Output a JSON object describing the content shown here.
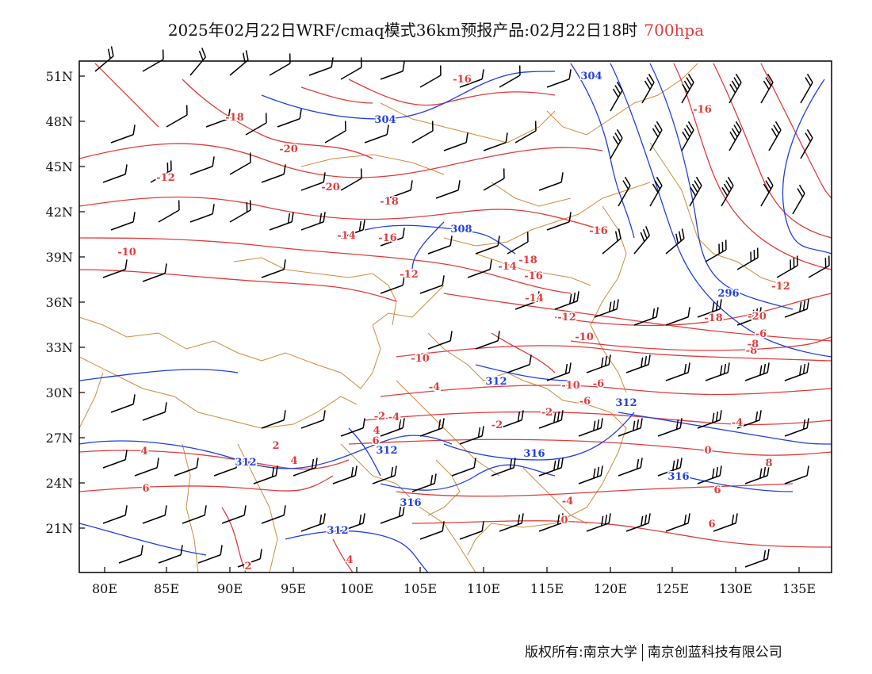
{
  "title": {
    "text": "2025年02月22日WRF/cmaq模式36km预报产品:02月22日18时",
    "level": "700hpa"
  },
  "axes": {
    "lat_labels": [
      "51N",
      "48N",
      "45N",
      "42N",
      "39N",
      "36N",
      "33N",
      "30N",
      "27N",
      "24N",
      "21N"
    ],
    "lon_labels": [
      "80E",
      "85E",
      "90E",
      "95E",
      "100E",
      "105E",
      "110E",
      "115E",
      "120E",
      "125E",
      "130E",
      "135E"
    ]
  },
  "legend_colors": {
    "temperature": "#e03c3c",
    "geopotential": "#2040e0",
    "boundary": "#d08a3c",
    "wind": "#000000"
  },
  "temperature_labels": [
    "-16",
    "-16",
    "-18",
    "-20",
    "-12",
    "-20",
    "-18",
    "-14",
    "-16",
    "-10",
    "-12",
    "-16",
    "-18",
    "-16",
    "-14",
    "-12",
    "-10",
    "-18",
    "-20",
    "-10",
    "-8",
    "-6",
    "-4",
    "-6",
    "-4",
    "-2",
    "-4",
    "-2",
    "0",
    "2",
    "4",
    "4",
    "4",
    "6",
    "6",
    "8",
    "6",
    "-4",
    "0",
    "2",
    "4",
    "-2",
    "6",
    "-6",
    "-8",
    "-12",
    "-10",
    "-14"
  ],
  "height_labels": [
    "304",
    "304",
    "308",
    "296",
    "312",
    "312",
    "312",
    "316",
    "316",
    "312",
    "316",
    "312"
  ],
  "footer": {
    "left": "版权所有:南京大学",
    "right": "南京创蓝科技有限公司"
  }
}
